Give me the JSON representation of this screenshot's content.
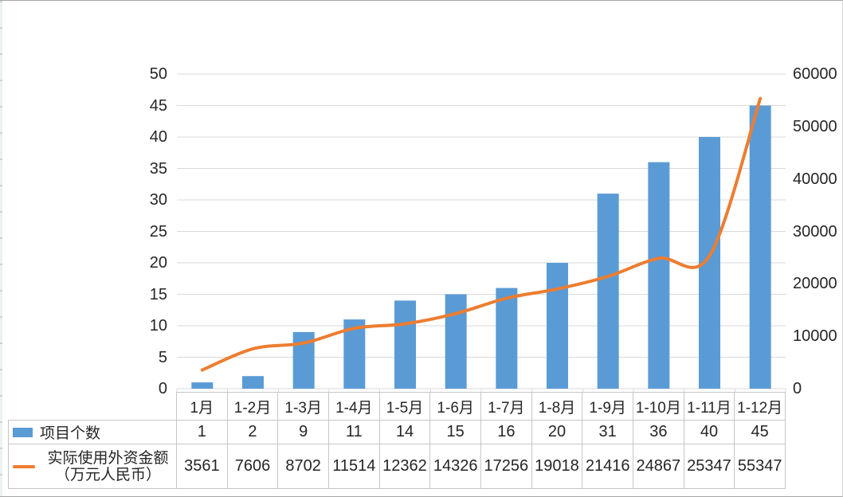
{
  "colors": {
    "bar": "#5B9BD5",
    "line": "#ED7D31",
    "grid": "#D9D9D9",
    "table_border": "#C6C6C6",
    "text": "#262626"
  },
  "chart_data": {
    "type": "combo-bar-line",
    "title": "",
    "xlabel": "",
    "ylabel_left": "",
    "ylabel_right": "",
    "grid": true,
    "legend_position": "data-table-left",
    "categories": [
      "1月",
      "1-2月",
      "1-3月",
      "1-4月",
      "1-5月",
      "1-6月",
      "1-7月",
      "1-8月",
      "1-9月",
      "1-10月",
      "1-11月",
      "1-12月"
    ],
    "series": [
      {
        "name": "项目个数",
        "type": "bar",
        "axis": "left",
        "color": "#5B9BD5",
        "values": [
          1,
          2,
          9,
          11,
          14,
          15,
          16,
          20,
          31,
          36,
          40,
          45
        ]
      },
      {
        "name": "实际使用外资金额（万元人民币）",
        "type": "line",
        "axis": "right",
        "color": "#ED7D31",
        "smooth": true,
        "values": [
          3561,
          7606,
          8702,
          11514,
          12362,
          14326,
          17256,
          19018,
          21416,
          24867,
          25347,
          55347
        ]
      }
    ],
    "left_axis": {
      "min": 0,
      "max": 50,
      "step": 5,
      "tick_labels": [
        "0",
        "5",
        "10",
        "15",
        "20",
        "25",
        "30",
        "35",
        "40",
        "45",
        "50"
      ]
    },
    "right_axis": {
      "min": 0,
      "max": 60000,
      "step": 10000,
      "tick_labels": [
        "0",
        "10000",
        "20000",
        "30000",
        "40000",
        "50000",
        "60000"
      ]
    }
  },
  "table": {
    "rows": [
      {
        "swatch": "bar-swatch",
        "label": "项目个数"
      },
      {
        "swatch": "line-swatch",
        "label_lines": [
          "实际使用外资金额",
          "（万元人民币）"
        ]
      }
    ]
  }
}
